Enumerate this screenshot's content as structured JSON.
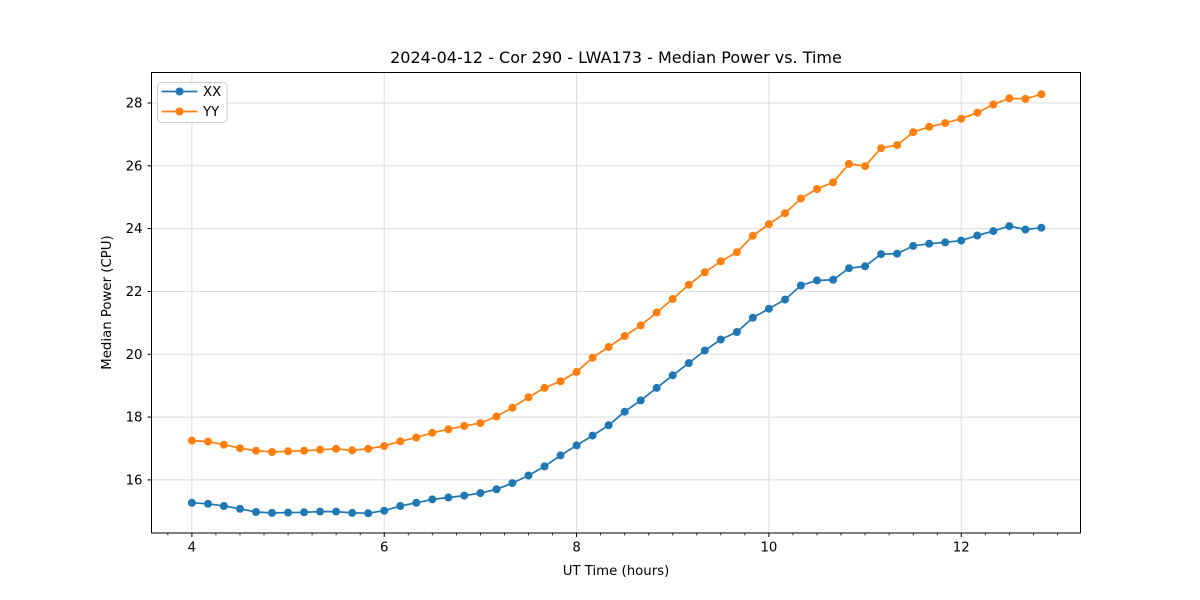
{
  "chart_data": {
    "type": "line",
    "title": "2024-04-12 - Cor 290 - LWA173 - Median Power vs. Time",
    "xlabel": "UT Time (hours)",
    "ylabel": "Median Power (CPU)",
    "xlim": [
      3.58,
      13.24
    ],
    "ylim": [
      14.31,
      28.97
    ],
    "xticks": [
      4,
      6,
      8,
      10,
      12
    ],
    "yticks": [
      16,
      18,
      20,
      22,
      24,
      26,
      28
    ],
    "minor_xtick_step": 0.25,
    "grid": true,
    "grid_color": "#dcdcdc",
    "background_color": "#ffffff",
    "spine_color": "#000000",
    "legend_position": "upper left",
    "marker": "circle",
    "x": [
      4.0,
      4.167,
      4.333,
      4.5,
      4.667,
      4.833,
      5.0,
      5.167,
      5.333,
      5.5,
      5.667,
      5.833,
      6.0,
      6.167,
      6.333,
      6.5,
      6.667,
      6.833,
      7.0,
      7.167,
      7.333,
      7.5,
      7.667,
      7.833,
      8.0,
      8.167,
      8.333,
      8.5,
      8.667,
      8.833,
      9.0,
      9.167,
      9.333,
      9.5,
      9.667,
      9.833,
      10.0,
      10.167,
      10.333,
      10.5,
      10.667,
      10.833,
      11.0,
      11.167,
      11.333,
      11.5,
      11.667,
      11.833,
      12.0,
      12.167,
      12.333,
      12.5,
      12.667,
      12.833
    ],
    "series": [
      {
        "name": "XX",
        "color": "#1f77b4",
        "values": [
          15.27,
          15.24,
          15.17,
          15.08,
          14.98,
          14.95,
          14.96,
          14.97,
          14.99,
          14.99,
          14.95,
          14.94,
          15.02,
          15.17,
          15.27,
          15.38,
          15.44,
          15.5,
          15.58,
          15.7,
          15.9,
          16.14,
          16.43,
          16.78,
          17.1,
          17.41,
          17.74,
          18.17,
          18.53,
          18.93,
          19.33,
          19.72,
          20.12,
          20.47,
          20.71,
          21.16,
          21.45,
          21.74,
          22.19,
          22.35,
          22.37,
          22.74,
          22.8,
          23.19,
          23.2,
          23.45,
          23.52,
          23.56,
          23.62,
          23.78,
          23.92,
          24.08,
          23.97,
          24.03
        ]
      },
      {
        "name": "YY",
        "color": "#ff7f0e",
        "values": [
          17.25,
          17.22,
          17.12,
          17.01,
          16.93,
          16.89,
          16.91,
          16.93,
          16.96,
          16.99,
          16.94,
          16.99,
          17.08,
          17.23,
          17.35,
          17.5,
          17.61,
          17.72,
          17.81,
          18.02,
          18.3,
          18.63,
          18.93,
          19.14,
          19.44,
          19.89,
          20.23,
          20.58,
          20.92,
          21.33,
          21.76,
          22.21,
          22.61,
          22.96,
          23.25,
          23.77,
          24.14,
          24.49,
          24.96,
          25.26,
          25.47,
          26.06,
          25.99,
          26.56,
          26.66,
          27.07,
          27.24,
          27.36,
          27.5,
          27.69,
          27.95,
          28.15,
          28.13,
          28.28
        ]
      }
    ]
  }
}
